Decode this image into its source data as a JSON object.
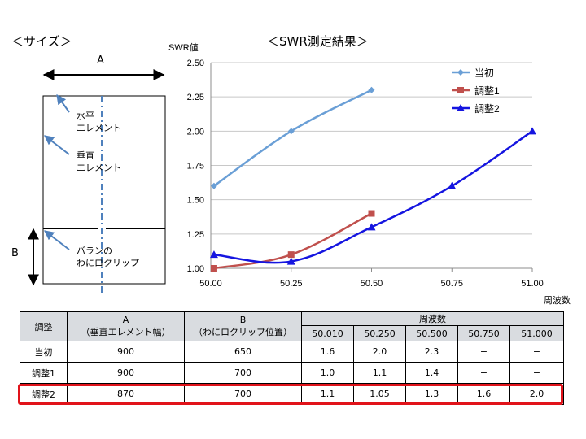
{
  "size_section": {
    "title": "＜サイズ＞",
    "label_a": "A",
    "label_b": "B",
    "annotations": [
      "水平",
      "エレメント",
      "垂直",
      "エレメント",
      "バランの",
      "わにロクリップ"
    ]
  },
  "chart_section": {
    "title": "＜SWR測定結果＞"
  },
  "chart_data": {
    "type": "line",
    "title": "",
    "ylabel": "SWR値",
    "xlabel": "周波数",
    "xlim": [
      50.0,
      51.0
    ],
    "ylim": [
      1.0,
      2.5
    ],
    "x_ticks": [
      "50.00",
      "50.25",
      "50.50",
      "50.75",
      "51.00"
    ],
    "y_ticks": [
      "1.00",
      "1.25",
      "1.50",
      "1.75",
      "2.00",
      "2.25",
      "2.50"
    ],
    "grid": true,
    "legend": "top-right",
    "series": [
      {
        "name": "当初",
        "color": "#6a9fd6",
        "marker": "diamond",
        "x": [
          50.01,
          50.25,
          50.5
        ],
        "values": [
          1.6,
          2.0,
          2.3
        ]
      },
      {
        "name": "調整1",
        "color": "#c0504d",
        "marker": "square",
        "x": [
          50.01,
          50.25,
          50.5
        ],
        "values": [
          1.0,
          1.1,
          1.4
        ]
      },
      {
        "name": "調整2",
        "color": "#1515e0",
        "marker": "triangle",
        "x": [
          50.01,
          50.25,
          50.5,
          50.75,
          51.0
        ],
        "values": [
          1.1,
          1.05,
          1.3,
          1.6,
          2.0
        ]
      }
    ]
  },
  "table": {
    "col_adjust": "調整",
    "col_a": [
      "A",
      "（垂直エレメント幅）"
    ],
    "col_b": [
      "B",
      "（わにロクリップ位置）"
    ],
    "col_freq": "周波数",
    "freqs": [
      "50.010",
      "50.250",
      "50.500",
      "50.750",
      "51.000"
    ],
    "rows": [
      {
        "name": "当初",
        "a": "900",
        "b": "650",
        "v": [
          "1.6",
          "2.0",
          "2.3",
          "−",
          "−"
        ]
      },
      {
        "name": "調整1",
        "a": "900",
        "b": "700",
        "v": [
          "1.0",
          "1.1",
          "1.4",
          "−",
          "−"
        ]
      },
      {
        "name": "調整2",
        "a": "870",
        "b": "700",
        "v": [
          "1.1",
          "1.05",
          "1.3",
          "1.6",
          "2.0"
        ]
      }
    ]
  }
}
